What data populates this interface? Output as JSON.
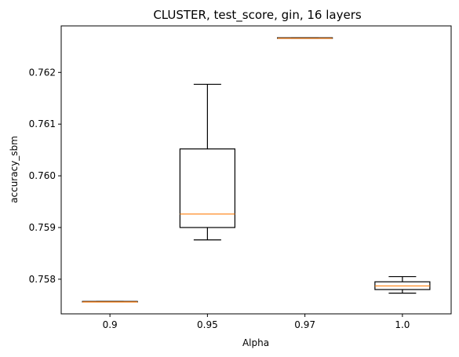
{
  "chart_data": {
    "type": "box",
    "title": "CLUSTER, test_score, gin, 16 layers",
    "xlabel": "Alpha",
    "ylabel": "accuracy_sbm",
    "categories": [
      "0.9",
      "0.95",
      "0.97",
      "1.0"
    ],
    "ylim": [
      0.75733,
      0.7629
    ],
    "yticks": [
      0.758,
      0.759,
      0.76,
      0.761,
      0.762
    ],
    "ytick_labels": [
      "0.758",
      "0.759",
      "0.760",
      "0.761",
      "0.762"
    ],
    "boxes": [
      {
        "category": "0.9",
        "whisker_low": 0.75756,
        "q1": 0.75756,
        "median": 0.75756,
        "q3": 0.75757,
        "whisker_high": 0.75757
      },
      {
        "category": "0.95",
        "whisker_low": 0.75876,
        "q1": 0.759,
        "median": 0.75926,
        "q3": 0.76052,
        "whisker_high": 0.76177
      },
      {
        "category": "0.97",
        "whisker_low": 0.76266,
        "q1": 0.76266,
        "median": 0.76266,
        "q3": 0.76267,
        "whisker_high": 0.76267
      },
      {
        "category": "1.0",
        "whisker_low": 0.75773,
        "q1": 0.7578,
        "median": 0.75787,
        "q3": 0.75795,
        "whisker_high": 0.75805
      }
    ],
    "grid": false,
    "colors": {
      "box": "#000000",
      "median": "#ff7f0e",
      "axes": "#000000"
    }
  }
}
